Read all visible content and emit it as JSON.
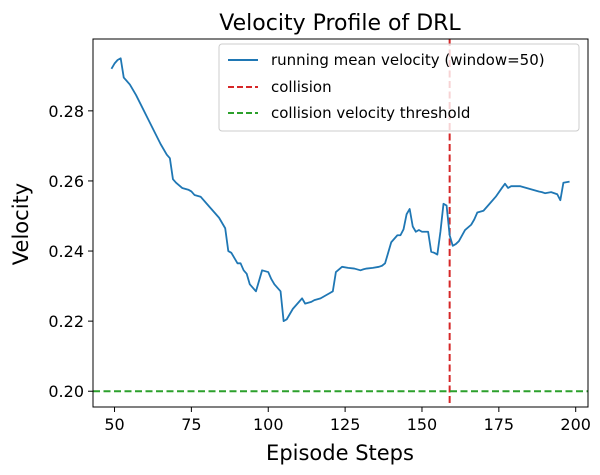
{
  "chart_data": {
    "type": "line",
    "title": "Velocity Profile of DRL",
    "xlabel": "Episode Steps",
    "ylabel": "Velocity",
    "xlim": [
      43,
      204
    ],
    "ylim": [
      0.1955,
      0.3005
    ],
    "xticks": [
      50,
      75,
      100,
      125,
      150,
      175,
      200
    ],
    "yticks": [
      0.2,
      0.22,
      0.24,
      0.26,
      0.28
    ],
    "grid": false,
    "legend_position": "top-right",
    "colors": {
      "series": "#1f77b4",
      "collision": "#d62728",
      "threshold": "#2ca02c"
    },
    "series": [
      {
        "name": "running mean velocity (window=50)",
        "x": [
          49,
          50,
          51,
          52,
          53,
          55,
          57,
          59,
          61,
          63,
          65,
          67,
          68,
          69,
          70,
          72,
          74,
          75,
          76,
          78,
          80,
          82,
          84,
          85,
          86,
          87,
          88,
          89,
          90,
          91,
          92,
          93,
          94,
          95,
          96,
          98,
          100,
          101,
          102,
          104,
          105,
          106,
          108,
          110,
          111,
          112,
          114,
          115,
          117,
          119,
          120,
          121,
          122,
          124,
          126,
          128,
          130,
          131,
          132,
          134,
          136,
          137,
          138,
          139,
          140,
          141,
          142,
          143,
          144,
          145,
          146,
          147,
          148,
          149,
          150,
          152,
          153,
          154,
          155,
          156,
          157,
          158,
          159,
          160,
          161,
          162,
          164,
          166,
          167,
          168,
          170,
          172,
          174,
          176,
          177,
          178,
          179,
          180,
          182,
          184,
          186,
          188,
          189,
          190,
          192,
          194,
          195,
          196,
          198
        ],
        "values": [
          0.292,
          0.2935,
          0.2945,
          0.295,
          0.2895,
          0.2875,
          0.2845,
          0.281,
          0.2775,
          0.274,
          0.2705,
          0.2675,
          0.2665,
          0.2605,
          0.2595,
          0.258,
          0.2575,
          0.257,
          0.256,
          0.2555,
          0.2535,
          0.2515,
          0.2495,
          0.248,
          0.2465,
          0.24,
          0.2395,
          0.238,
          0.2365,
          0.2365,
          0.2345,
          0.2335,
          0.2305,
          0.2295,
          0.2285,
          0.2345,
          0.234,
          0.232,
          0.2305,
          0.2285,
          0.22,
          0.2205,
          0.2235,
          0.2255,
          0.2265,
          0.225,
          0.2255,
          0.226,
          0.2265,
          0.2275,
          0.228,
          0.2285,
          0.234,
          0.2355,
          0.2352,
          0.235,
          0.2345,
          0.2348,
          0.235,
          0.2352,
          0.2355,
          0.2358,
          0.2365,
          0.2395,
          0.2425,
          0.2435,
          0.2445,
          0.2445,
          0.2462,
          0.2505,
          0.252,
          0.247,
          0.2455,
          0.246,
          0.2455,
          0.2455,
          0.2398,
          0.2395,
          0.239,
          0.2455,
          0.2535,
          0.253,
          0.2445,
          0.2415,
          0.242,
          0.2428,
          0.246,
          0.2475,
          0.249,
          0.251,
          0.2515,
          0.2535,
          0.2555,
          0.258,
          0.2592,
          0.258,
          0.2585,
          0.2585,
          0.2585,
          0.258,
          0.2575,
          0.257,
          0.2568,
          0.2565,
          0.2568,
          0.2562,
          0.2545,
          0.2595,
          0.2598
        ]
      }
    ],
    "reference_lines": [
      {
        "name": "collision",
        "orientation": "vertical",
        "value": 159,
        "style": "dashed"
      },
      {
        "name": "collision velocity threshold",
        "orientation": "horizontal",
        "value": 0.2,
        "style": "dashed"
      }
    ]
  }
}
